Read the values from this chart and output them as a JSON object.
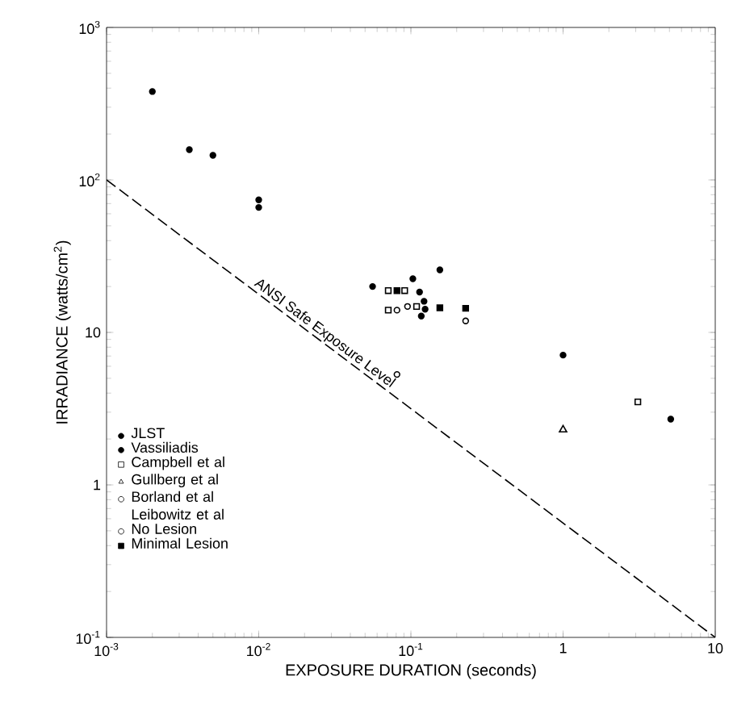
{
  "chart_data": {
    "type": "scatter",
    "xlabel": "EXPOSURE DURATION (seconds)",
    "ylabel": "IRRADIANCE (watts/cm$^{2}$)",
    "log": "xy",
    "grid": false,
    "legend": "bottom left",
    "xlim": [
      0.001,
      10
    ],
    "ylim": [
      0.1,
      1000
    ],
    "xticks": [
      {
        "value": 0.001,
        "label": "10$^{-3}$"
      },
      {
        "value": 0.01,
        "label": "10$^{-2}$"
      },
      {
        "value": 0.1,
        "label": "10$^{-1}$"
      },
      {
        "value": 1,
        "label": "1"
      },
      {
        "value": 10,
        "label": "10"
      }
    ],
    "yticks": [
      {
        "value": 0.1,
        "label": "10$^{-1}$"
      },
      {
        "value": 1,
        "label": "1"
      },
      {
        "value": 10,
        "label": "10"
      },
      {
        "value": 100,
        "label": "10$^{2}$"
      },
      {
        "value": 1000,
        "label": "10$^{3}$"
      }
    ],
    "series": [
      {
        "name": "JLST",
        "color": "#000000",
        "marker": "circle",
        "x": [
          0.056,
          0.103,
          0.155,
          0.114,
          0.122,
          0.117,
          0.124,
          1,
          5.1
        ],
        "values": [
          20,
          22.5,
          25.7,
          18.4,
          16,
          12.8,
          14.2,
          7.1,
          2.7
        ]
      },
      {
        "name": "Vassiliadis",
        "color": "#000000",
        "marker": "circle",
        "x": [
          0.002,
          0.0035,
          0.005,
          0.01,
          0.01
        ],
        "values": [
          380,
          158,
          145,
          74,
          66
        ]
      },
      {
        "name": "Campbell et al",
        "color": "#ffffff",
        "marker": "square",
        "x": [
          0.071,
          0.091,
          0.071,
          0.109,
          3.1
        ],
        "values": [
          18.8,
          18.8,
          14,
          14.8,
          3.5
        ]
      },
      {
        "name": "Gullberg et al",
        "color": "#ffffff",
        "marker": "triangle",
        "x": [
          1
        ],
        "values": [
          2.3
        ]
      },
      {
        "name": "Borland et al Leibowitz et al",
        "color": "#ffffff",
        "marker": "circle",
        "x": [
          0.081,
          0.095,
          0.229
        ],
        "values": [
          14,
          14.8,
          11.9
        ]
      },
      {
        "name": "No Lesion",
        "color": "#ffffff",
        "marker": "circle",
        "x": [
          0.081
        ],
        "values": [
          5.3
        ]
      },
      {
        "name": "Minimal Lesion",
        "color": "#000000",
        "marker": "square",
        "x": [
          0.081,
          0.155,
          0.229
        ],
        "values": [
          18.8,
          14.5,
          14.4
        ]
      },
      {
        "name": "ANSI Safe Exposure Level",
        "type": "line",
        "line_style": "dashed",
        "color": "#000000",
        "x": [
          0.001,
          10
        ],
        "values": [
          100,
          0.1
        ]
      }
    ]
  }
}
